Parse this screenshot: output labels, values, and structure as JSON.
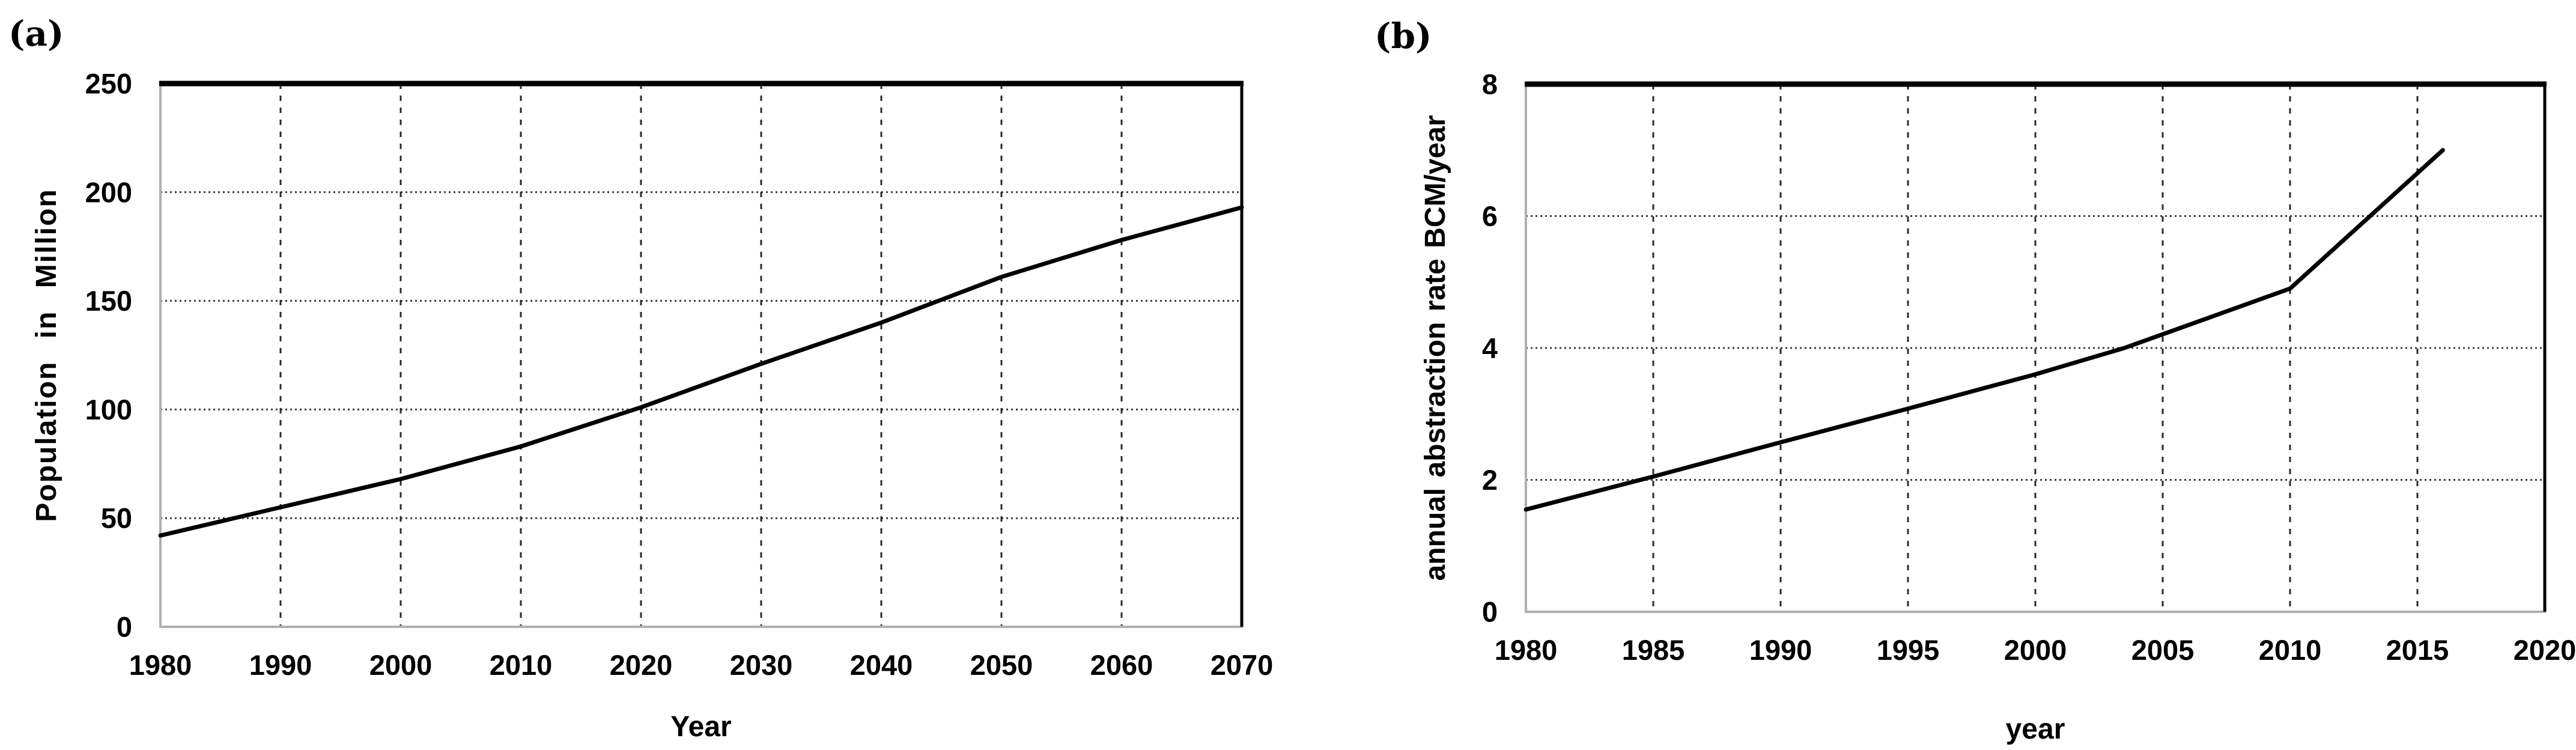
{
  "page": {
    "background": "#ffffff",
    "figure_type": "two-panel line figure"
  },
  "style": {
    "line_color": "#000000",
    "border_color": "#000000",
    "axis_color": "#b0b0b0",
    "grid_dashed_color": "#2b2b2b",
    "grid_dotted_color": "#3c3c3c",
    "text_color": "#000000"
  },
  "chart_data": [
    {
      "type": "line",
      "panel_label": "(a)",
      "title": "",
      "xlabel": "Year",
      "ylabel": "Population in Million",
      "xlim": [
        1980,
        2070
      ],
      "ylim": [
        0,
        250
      ],
      "x_ticks": [
        1980,
        1990,
        2000,
        2010,
        2020,
        2030,
        2040,
        2050,
        2060,
        2070
      ],
      "y_ticks": [
        0,
        50,
        100,
        150,
        200,
        250
      ],
      "grid": {
        "vertical": "dashed",
        "horizontal": "dotted"
      },
      "legend_position": "none",
      "series": [
        {
          "name": "population",
          "x": [
            1980,
            1990,
            2000,
            2010,
            2020,
            2030,
            2040,
            2050,
            2060,
            2070
          ],
          "y": [
            42,
            55,
            68,
            83,
            101,
            121,
            140,
            161,
            178,
            193
          ]
        }
      ]
    },
    {
      "type": "line",
      "panel_label": "(b)",
      "title": "",
      "xlabel": "year",
      "ylabel": "annual abstraction rate BCM/year",
      "xlim": [
        1980,
        2020
      ],
      "ylim": [
        0,
        8
      ],
      "x_ticks": [
        1980,
        1985,
        1990,
        1995,
        2000,
        2005,
        2010,
        2015,
        2020
      ],
      "y_ticks": [
        0,
        2,
        4,
        6,
        8
      ],
      "grid": {
        "vertical": "dashed",
        "horizontal": "dotted"
      },
      "legend_position": "none",
      "series": [
        {
          "name": "abstraction-rate",
          "x": [
            1980,
            1985,
            1990,
            1995,
            2000,
            2003.5,
            2010,
            2016
          ],
          "y": [
            1.55,
            2.05,
            2.57,
            3.08,
            3.6,
            4.0,
            4.9,
            7.0
          ]
        }
      ]
    }
  ]
}
